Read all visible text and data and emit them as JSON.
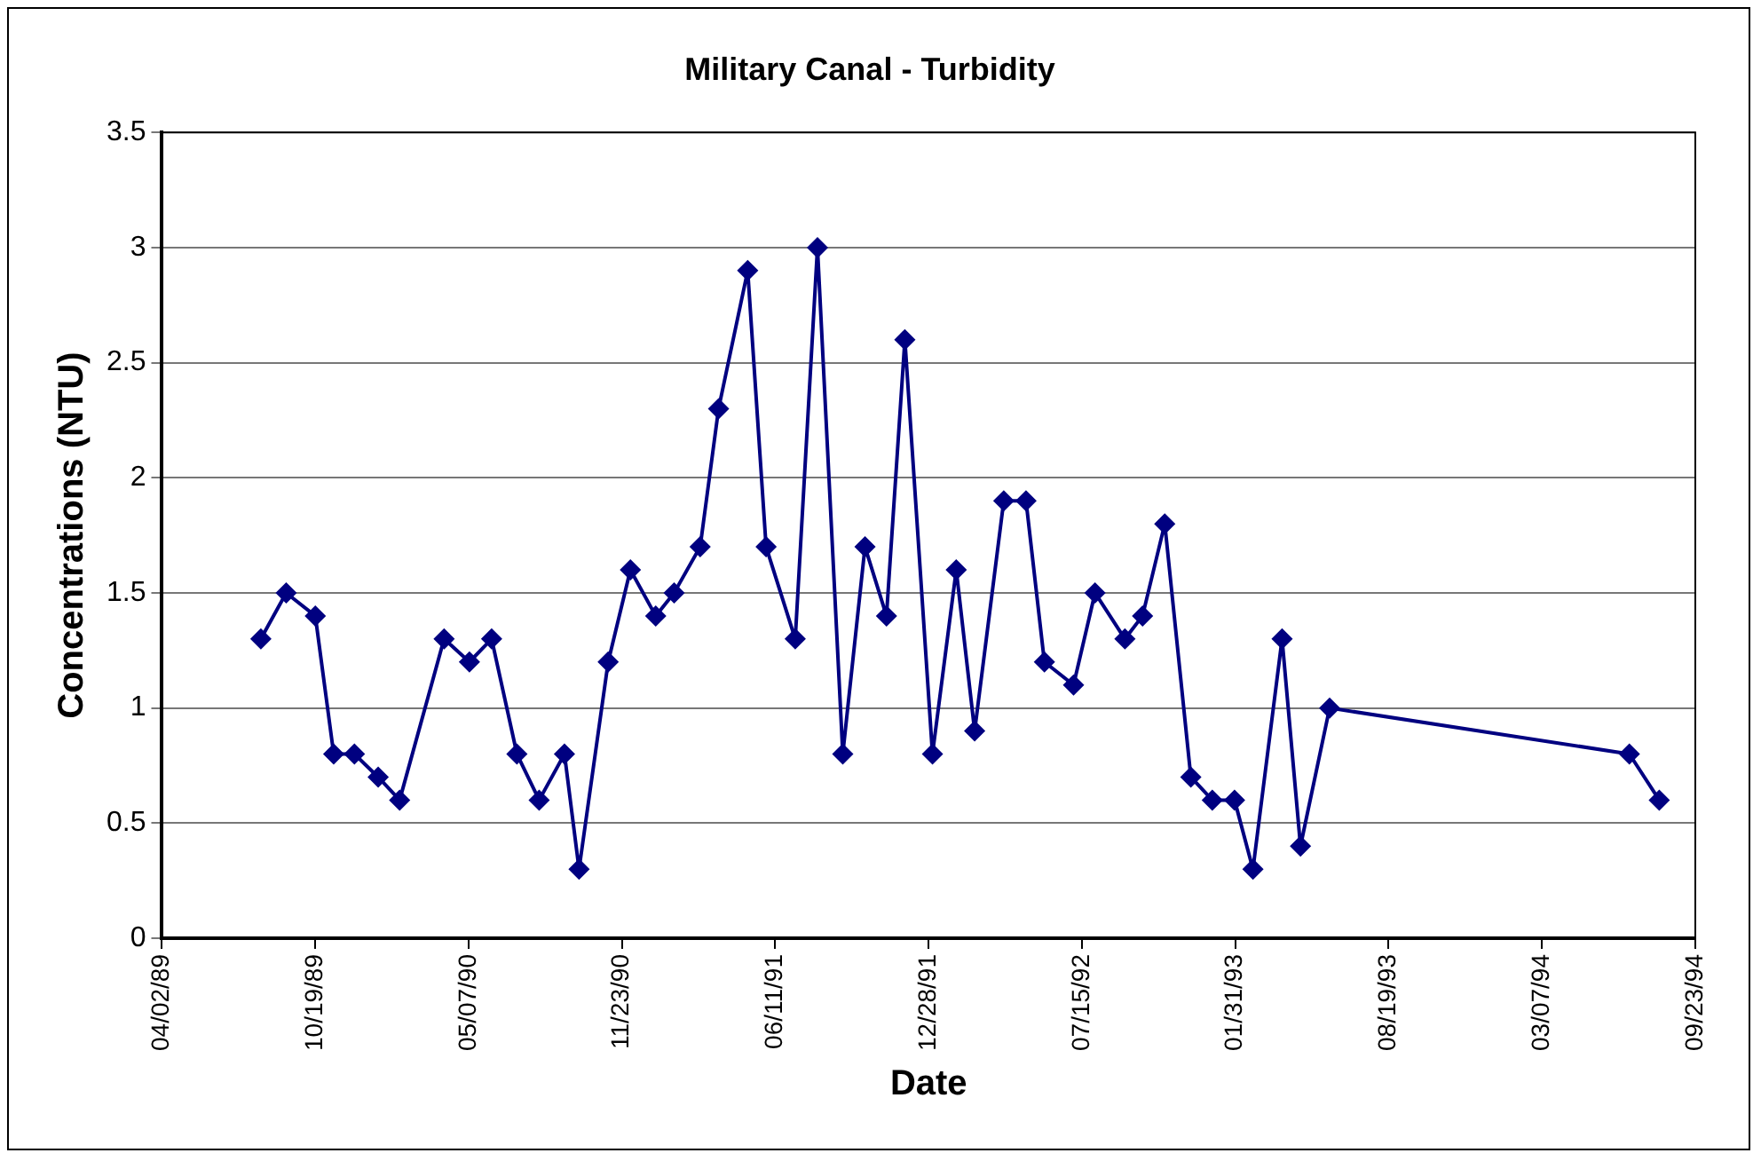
{
  "chart_data": {
    "type": "line",
    "title": "Military Canal - Turbidity",
    "xlabel": "Date",
    "ylabel": "Concentrations (NTU)",
    "x": [
      "1989-08-09",
      "1989-09-11",
      "1989-10-19",
      "1989-11-12",
      "1989-12-09",
      "1990-01-09",
      "1990-02-06",
      "1990-04-05",
      "1990-05-08",
      "1990-06-06",
      "1990-07-09",
      "1990-08-07",
      "1990-09-09",
      "1990-09-28",
      "1990-11-05",
      "1990-12-04",
      "1991-01-06",
      "1991-01-30",
      "1991-03-05",
      "1991-03-29",
      "1991-05-06",
      "1991-05-30",
      "1991-07-07",
      "1991-08-05",
      "1991-09-07",
      "1991-10-06",
      "1991-11-03",
      "1991-11-27",
      "1992-01-02",
      "1992-02-02",
      "1992-02-26",
      "1992-04-04",
      "1992-05-03",
      "1992-05-27",
      "1992-07-04",
      "1992-08-01",
      "1992-09-09",
      "1992-10-02",
      "1992-10-31",
      "1992-12-04",
      "1993-01-01",
      "1993-01-30",
      "1993-02-23",
      "1993-04-02",
      "1993-04-26",
      "1993-06-03",
      "1994-06-29",
      "1994-08-07"
    ],
    "series": [
      {
        "color": "#000080",
        "values": [
          1.3,
          1.5,
          1.4,
          0.8,
          0.8,
          0.7,
          0.6,
          1.3,
          1.2,
          1.3,
          0.8,
          0.6,
          0.8,
          0.3,
          1.2,
          1.6,
          1.4,
          1.5,
          1.7,
          2.3,
          2.9,
          1.7,
          1.3,
          3.0,
          0.8,
          1.7,
          1.4,
          2.6,
          0.8,
          1.6,
          0.9,
          1.9,
          1.9,
          1.2,
          1.1,
          1.5,
          1.3,
          1.4,
          1.8,
          0.7,
          0.6,
          0.6,
          0.3,
          1.3,
          0.4,
          1.0,
          0.8,
          0.6
        ]
      }
    ],
    "xlim": [
      "1989-04-02",
      "1994-09-23"
    ],
    "xticks": [
      {
        "value": "1989-04-02",
        "label": "04/02/89"
      },
      {
        "value": "1989-10-19",
        "label": "10/19/89"
      },
      {
        "value": "1990-05-07",
        "label": "05/07/90"
      },
      {
        "value": "1990-11-23",
        "label": "11/23/90"
      },
      {
        "value": "1991-06-11",
        "label": "06/11/91"
      },
      {
        "value": "1991-12-28",
        "label": "12/28/91"
      },
      {
        "value": "1992-07-15",
        "label": "07/15/92"
      },
      {
        "value": "1993-01-31",
        "label": "01/31/93"
      },
      {
        "value": "1993-08-19",
        "label": "08/19/93"
      },
      {
        "value": "1994-03-07",
        "label": "03/07/94"
      },
      {
        "value": "1994-09-23",
        "label": "09/23/94"
      }
    ],
    "ylim": [
      0,
      3.5
    ],
    "yticks": [
      0,
      0.5,
      1,
      1.5,
      2,
      2.5,
      3,
      3.5
    ],
    "grid": "y",
    "legend": false,
    "marker": "diamond",
    "line_style": "solid"
  }
}
